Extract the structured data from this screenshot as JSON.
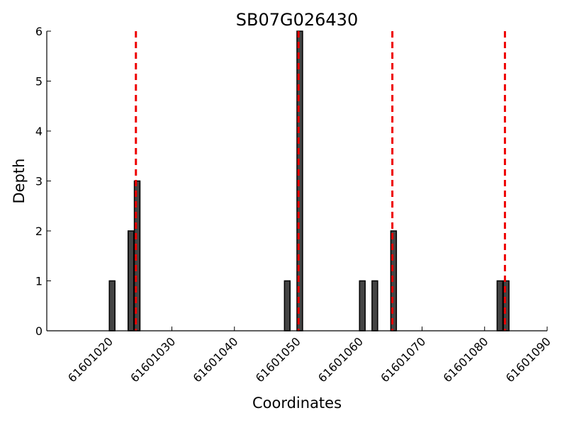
{
  "chart_data": {
    "type": "bar",
    "title": "SB07G026430",
    "xlabel": "Coordinates",
    "ylabel": "Depth",
    "xlim": [
      61601010,
      61601090
    ],
    "ylim": [
      0,
      6
    ],
    "x_ticks": [
      61601020,
      61601030,
      61601040,
      61601050,
      61601060,
      61601070,
      61601080,
      61601090
    ],
    "y_ticks": [
      0,
      1,
      2,
      3,
      4,
      5,
      6
    ],
    "bars": [
      {
        "x": 61601020,
        "value": 1
      },
      {
        "x": 61601023,
        "value": 2
      },
      {
        "x": 61601024,
        "value": 3
      },
      {
        "x": 61601048,
        "value": 1
      },
      {
        "x": 61601050,
        "value": 6
      },
      {
        "x": 61601060,
        "value": 1
      },
      {
        "x": 61601062,
        "value": 1
      },
      {
        "x": 61601065,
        "value": 2
      },
      {
        "x": 61601082,
        "value": 1
      },
      {
        "x": 61601083,
        "value": 1
      }
    ],
    "dashed_lines": [
      61601024.25,
      61601050.25,
      61601065.25,
      61601083.25
    ],
    "colors": {
      "bar": "#444444",
      "dashed_line": "#ee0000"
    },
    "grid": false
  }
}
